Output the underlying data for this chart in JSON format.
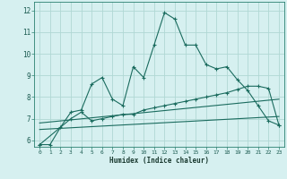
{
  "xlabel": "Humidex (Indice chaleur)",
  "background_color": "#d6f0f0",
  "grid_color": "#b0d8d4",
  "line_color": "#1a6b5e",
  "xlim": [
    -0.5,
    23.5
  ],
  "ylim": [
    5.7,
    12.4
  ],
  "xticks": [
    0,
    1,
    2,
    3,
    4,
    5,
    6,
    7,
    8,
    9,
    10,
    11,
    12,
    13,
    14,
    15,
    16,
    17,
    18,
    19,
    20,
    21,
    22,
    23
  ],
  "yticks": [
    6,
    7,
    8,
    9,
    10,
    11,
    12
  ],
  "series1_x": [
    0,
    1,
    2,
    3,
    4,
    5,
    6,
    7,
    8,
    9,
    10,
    11,
    12,
    13,
    14,
    15,
    16,
    17,
    18,
    19,
    20,
    21,
    22,
    23
  ],
  "series1_y": [
    5.8,
    5.8,
    6.6,
    7.3,
    7.4,
    8.6,
    8.9,
    7.9,
    7.6,
    9.4,
    8.9,
    10.4,
    11.9,
    11.6,
    10.4,
    10.4,
    9.5,
    9.3,
    9.4,
    8.8,
    8.3,
    7.6,
    6.9,
    6.7
  ],
  "series2_x": [
    0,
    3,
    4,
    5,
    6,
    7,
    8,
    9,
    10,
    11,
    12,
    13,
    14,
    15,
    16,
    17,
    18,
    19,
    20,
    21,
    22,
    23
  ],
  "series2_y": [
    5.8,
    7.0,
    7.3,
    6.9,
    7.0,
    7.1,
    7.2,
    7.2,
    7.4,
    7.5,
    7.6,
    7.7,
    7.8,
    7.9,
    8.0,
    8.1,
    8.2,
    8.35,
    8.5,
    8.5,
    8.4,
    6.7
  ],
  "series3_x": [
    0,
    23
  ],
  "series3_y": [
    6.8,
    7.9
  ],
  "series4_x": [
    0,
    23
  ],
  "series4_y": [
    6.5,
    7.1
  ]
}
